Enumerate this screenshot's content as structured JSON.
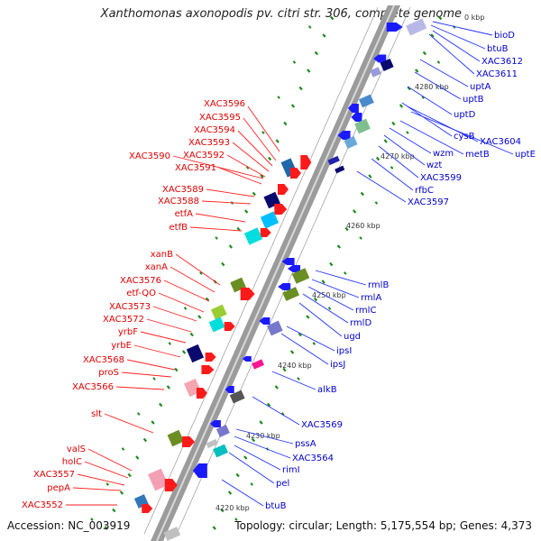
{
  "title": "Xanthomonas axonopodis pv. citri str. 306, complete genome",
  "accession": "Accession: NC_003919",
  "summary": "Topology: circular; Length: 5,175,554 bp; Genes: 4,373",
  "colors": {
    "left_label": "#dd0000",
    "right_label": "#0000cc",
    "backbone": "#999999",
    "tick": "#228822"
  },
  "scale_labels": [
    "4280 kbp",
    "4270 kbp",
    "4260 kbp",
    "4250 kbp",
    "4240 kbp",
    "4230 kbp",
    "4220 kbp",
    "0 kbp"
  ],
  "left_genes": [
    "XAC3596",
    "XAC3595",
    "XAC3594",
    "XAC3593",
    "XAC3592",
    "XAC3590",
    "XAC3591",
    "XAC3589",
    "XAC3588",
    "etfA",
    "etfB",
    "xanB",
    "xanA",
    "XAC3576",
    "etf-QO",
    "XAC3573",
    "XAC3572",
    "yrbF",
    "yrbE",
    "XAC3568",
    "proS",
    "XAC3566",
    "slt",
    "valS",
    "holC",
    "XAC3557",
    "pepA",
    "XAC3552"
  ],
  "right_genes": [
    "bioD",
    "btuB",
    "XAC3612",
    "XAC3611",
    "uptA",
    "uptB",
    "uptD",
    "cysB",
    "XAC3604",
    "uptE",
    "metB",
    "wzm",
    "wzt",
    "XAC3599",
    "rfbC",
    "XAC3597",
    "rmlB",
    "rmlA",
    "rmlC",
    "rmlD",
    "ugd",
    "ipsI",
    "ipsJ",
    "alkB",
    "XAC3569",
    "pssA",
    "XAC3564",
    "rimI",
    "pel",
    "btuB"
  ]
}
